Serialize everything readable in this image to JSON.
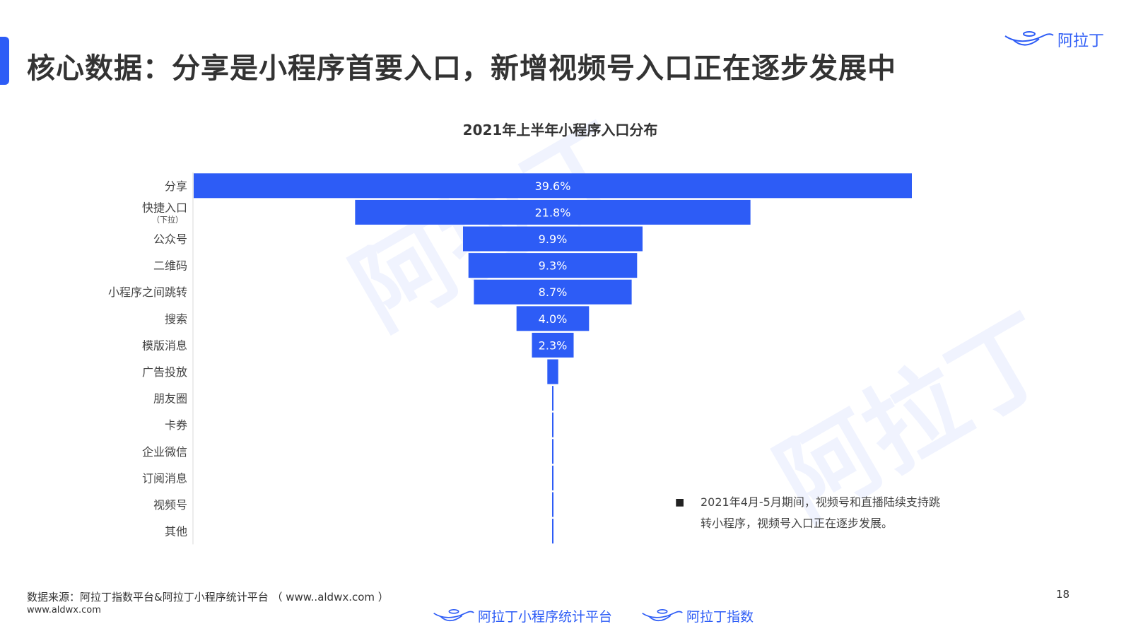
{
  "header": {
    "title": "核心数据：分享是小程序首要入口，新增视频号入口正在逐步发展中",
    "brand": "阿拉丁"
  },
  "watermark": "阿拉丁",
  "colors": {
    "accent": "#2d5cf6",
    "bar": "#2d5cf6",
    "text": "#333333"
  },
  "chart_data": {
    "type": "bar",
    "orientation": "horizontal-funnel",
    "title": "2021年上半年小程序入口分布",
    "categories": [
      {
        "label": "分享",
        "sublabel": ""
      },
      {
        "label": "快捷入口",
        "sublabel": "（下拉）"
      },
      {
        "label": "公众号",
        "sublabel": ""
      },
      {
        "label": "二维码",
        "sublabel": ""
      },
      {
        "label": "小程序之间跳转",
        "sublabel": ""
      },
      {
        "label": "搜索",
        "sublabel": ""
      },
      {
        "label": "模版消息",
        "sublabel": ""
      },
      {
        "label": "广告投放",
        "sublabel": ""
      },
      {
        "label": "朋友圈",
        "sublabel": ""
      },
      {
        "label": "卡券",
        "sublabel": ""
      },
      {
        "label": "企业微信",
        "sublabel": ""
      },
      {
        "label": "订阅消息",
        "sublabel": ""
      },
      {
        "label": "视频号",
        "sublabel": ""
      },
      {
        "label": "其他",
        "sublabel": ""
      }
    ],
    "values": [
      39.6,
      21.8,
      9.9,
      9.3,
      8.7,
      4.0,
      2.3,
      0.6,
      0.05,
      0.05,
      0.05,
      0.05,
      0.05,
      0.05
    ],
    "data_labels": [
      "39.6%",
      "21.8%",
      "9.9%",
      "9.3%",
      "8.7%",
      "4.0%",
      "2.3%",
      "",
      "",
      "",
      "",
      "",
      "",
      ""
    ],
    "xlim": [
      0,
      39.6
    ],
    "legend": "none",
    "grid": false
  },
  "note": {
    "bullet": "■",
    "text": "2021年4月-5月期间，视频号和直播陆续支持跳转小程序，视频号入口正在逐步发展。"
  },
  "footer": {
    "source": "数据来源：阿拉丁指数平台&阿拉丁小程序统计平台 （ www..aldwx.com ）",
    "url": "www.aldwx.com",
    "page_number": "18",
    "brand_platform": "阿拉丁小程序统计平台",
    "brand_index": "阿拉丁指数"
  }
}
